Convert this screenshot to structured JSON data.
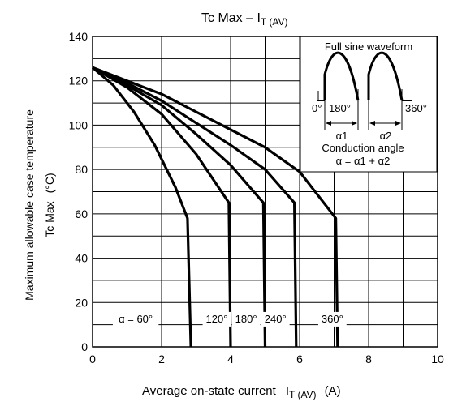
{
  "chart_data": {
    "type": "line",
    "title_main": "Tc Max – I",
    "title_sub": "T (AV)",
    "ylabel_line1": "Maximum allowable case temperature",
    "ylabel_line2": "Tc Max",
    "ylabel_unit": "(°C)",
    "xlabel_main": "Average on-state current",
    "xlabel_symbol": "I",
    "xlabel_sub": "T (AV)",
    "xlabel_unit": "(A)",
    "xlim": [
      0,
      10
    ],
    "ylim": [
      0,
      140
    ],
    "x_ticks": [
      "0",
      "2",
      "4",
      "6",
      "8",
      "10"
    ],
    "y_ticks": [
      "0",
      "20",
      "40",
      "60",
      "80",
      "100",
      "120",
      "140"
    ],
    "grid": true,
    "series": [
      {
        "name": "α = 60°",
        "label": "α = 60°",
        "points": [
          [
            0,
            126
          ],
          [
            0.6,
            118
          ],
          [
            1.2,
            106
          ],
          [
            1.8,
            91
          ],
          [
            2.4,
            72
          ],
          [
            2.75,
            58
          ],
          [
            2.85,
            0
          ]
        ]
      },
      {
        "name": "120°",
        "label": "120°",
        "points": [
          [
            0,
            126
          ],
          [
            1,
            117
          ],
          [
            2,
            105
          ],
          [
            3,
            87
          ],
          [
            3.95,
            65
          ],
          [
            4.0,
            0
          ]
        ]
      },
      {
        "name": "180°",
        "label": "180°",
        "points": [
          [
            0,
            126
          ],
          [
            1,
            118
          ],
          [
            2,
            109
          ],
          [
            3,
            96
          ],
          [
            4,
            82
          ],
          [
            4.95,
            65
          ],
          [
            5.0,
            0
          ]
        ]
      },
      {
        "name": "240°",
        "label": "240°",
        "points": [
          [
            0,
            126
          ],
          [
            1,
            119
          ],
          [
            2,
            111
          ],
          [
            3,
            101
          ],
          [
            4,
            91
          ],
          [
            5,
            80
          ],
          [
            5.85,
            65
          ],
          [
            5.9,
            0
          ]
        ]
      },
      {
        "name": "360°",
        "label": "360°",
        "points": [
          [
            0,
            126
          ],
          [
            1,
            120
          ],
          [
            2,
            114
          ],
          [
            3,
            106
          ],
          [
            4,
            98
          ],
          [
            5,
            90
          ],
          [
            6,
            79
          ],
          [
            7.05,
            58
          ],
          [
            7.1,
            0
          ]
        ]
      }
    ],
    "inset": {
      "title": "Full sine waveform",
      "label_0": "0°",
      "label_180": "180°",
      "label_360": "360°",
      "alpha1": "α1",
      "alpha2": "α2",
      "caption": "Conduction angle",
      "formula": "α = α1 + α2"
    }
  }
}
